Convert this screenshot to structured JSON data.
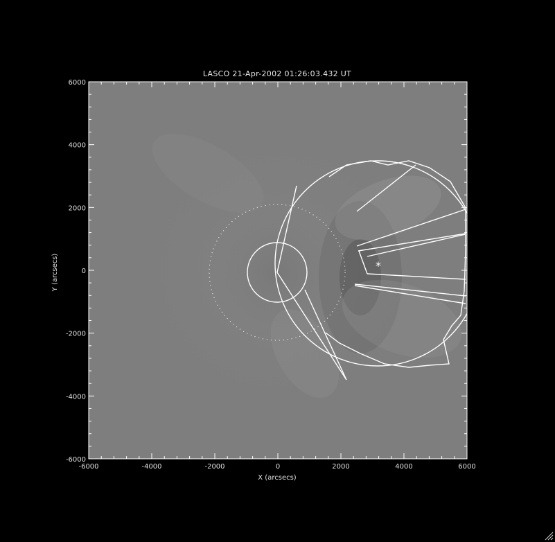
{
  "plot": {
    "title": "LASCO  21-Apr-2002 01:26:03.432 UT",
    "xlabel": "X (arcsecs)",
    "ylabel": "Y (arcsecs)",
    "x_ticks": [
      "-6000",
      "-4000",
      "-2000",
      "0",
      "2000",
      "4000",
      "6000"
    ],
    "y_ticks": [
      "6000",
      "4000",
      "2000",
      "0",
      "-2000",
      "-4000",
      "-6000"
    ],
    "xlim": [
      -6000,
      6000
    ],
    "ylim": [
      -6000,
      6000
    ],
    "background_color": "#000000",
    "image_color": "#7e7e7e",
    "overlay_color": "#ffffff",
    "marker": "*"
  }
}
